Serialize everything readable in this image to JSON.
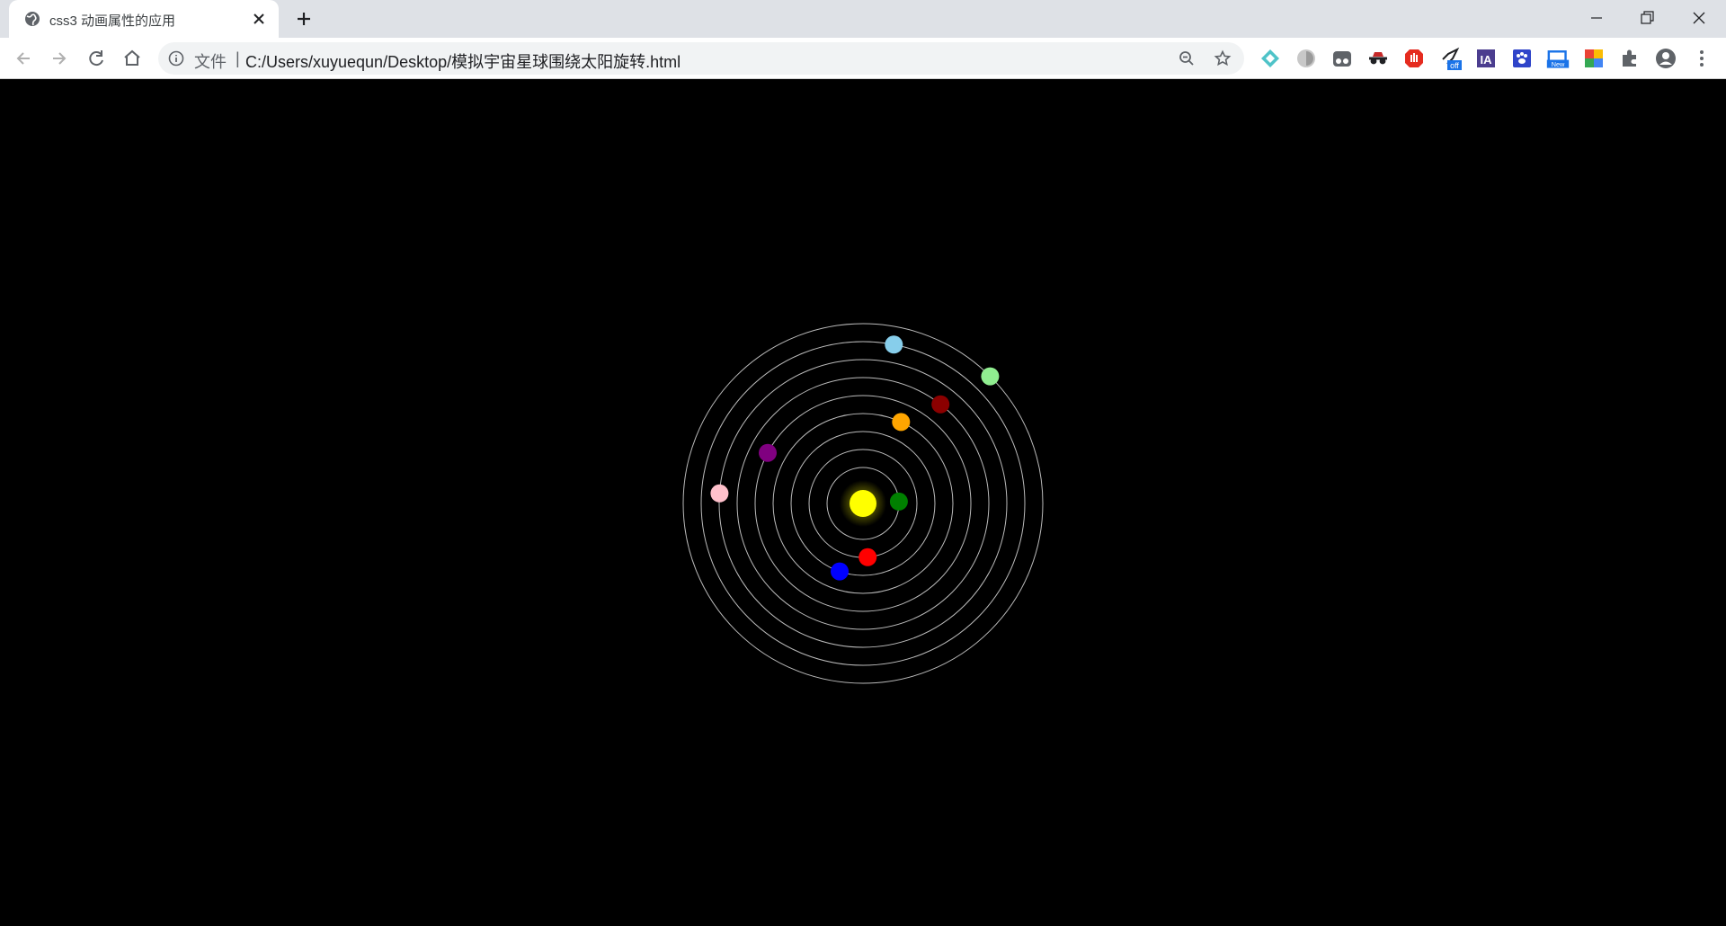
{
  "tab": {
    "title": "css3 动画属性的应用"
  },
  "address_bar": {
    "scheme_label": "文件",
    "separator": "|",
    "url": "C:/Users/xuyuequn/Desktop/模拟宇宙星球围绕太阳旋转.html"
  },
  "extensions": [
    {
      "name": "diamond-extension-icon"
    },
    {
      "name": "grey-extension-icon"
    },
    {
      "name": "tampermonkey-extension-icon"
    },
    {
      "name": "incognito-extension-icon"
    },
    {
      "name": "adblock-extension-icon"
    },
    {
      "name": "proxy-off-extension-icon",
      "badge": "off"
    },
    {
      "name": "ia-extension-icon",
      "label": "IA"
    },
    {
      "name": "paw-extension-icon"
    },
    {
      "name": "new-extension-icon",
      "badge": "New"
    },
    {
      "name": "translate-extension-icon"
    },
    {
      "name": "puzzle-extensions-icon"
    },
    {
      "name": "profile-avatar-icon"
    },
    {
      "name": "menu-kebab-icon"
    }
  ],
  "scene": {
    "sun": {
      "name": "sun",
      "color": "#ffff00"
    },
    "orbit_color": "#bbbbbb",
    "planets": [
      {
        "name": "planet-green",
        "color": "#008000",
        "orbit": 1,
        "angle_deg": -3
      },
      {
        "name": "planet-red",
        "color": "#ff0000",
        "orbit": 2,
        "angle_deg": 85
      },
      {
        "name": "planet-blue",
        "color": "#0000ff",
        "orbit": 3,
        "angle_deg": 109
      },
      {
        "name": "planet-orange",
        "color": "#ffa500",
        "orbit": 4,
        "angle_deg": -65
      },
      {
        "name": "planet-purple",
        "color": "#800080",
        "orbit": 5,
        "angle_deg": -152
      },
      {
        "name": "planet-darkred",
        "color": "#8b0000",
        "orbit": 6,
        "angle_deg": -52
      },
      {
        "name": "planet-pink",
        "color": "#ffc0cb",
        "orbit": 7,
        "angle_deg": -176
      },
      {
        "name": "planet-lightblue",
        "color": "#87ceeb",
        "orbit": 8,
        "angle_deg": -79
      },
      {
        "name": "planet-lightgreen",
        "color": "#90ee90",
        "orbit": 9,
        "angle_deg": -45
      }
    ]
  }
}
